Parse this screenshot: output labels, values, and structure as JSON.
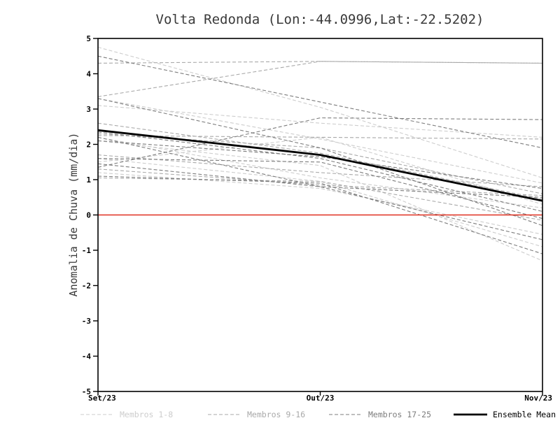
{
  "chart_data": {
    "type": "line",
    "title": "Volta Redonda (Lon:-44.0996,Lat:-22.5202)",
    "xlabel": "",
    "ylabel": "Anomalia de Chuva (mm/dia)",
    "x_categories": [
      "Set/23",
      "Out/23",
      "Nov/23"
    ],
    "ylim": [
      -5,
      5
    ],
    "ytick_step": 1,
    "grid": false,
    "legend_position": "bottom",
    "colors": {
      "members_1_8": "#cdcdcd",
      "members_9_16": "#a9a9a9",
      "members_17_25": "#7d7d7d",
      "ensemble_mean": "#000000",
      "zero_line": "#e03020",
      "frame": "#000000"
    },
    "zero_line": {
      "y": 0
    },
    "groups": [
      {
        "label": "Membros 1-8",
        "color": "#cdcdcd",
        "members": [
          [
            4.75,
            3.05,
            1.05
          ],
          [
            3.3,
            2.15,
            0.9
          ],
          [
            2.1,
            1.4,
            -1.3
          ],
          [
            1.6,
            0.95,
            -0.9
          ],
          [
            3.1,
            2.6,
            2.2
          ],
          [
            1.5,
            2.2,
            0.3
          ],
          [
            2.2,
            1.05,
            0.2
          ],
          [
            1.2,
            0.75,
            -0.55
          ]
        ]
      },
      {
        "label": "Membros 9-16",
        "color": "#a9a9a9",
        "members": [
          [
            4.3,
            4.35,
            4.3
          ],
          [
            3.35,
            4.35,
            4.3
          ],
          [
            2.3,
            1.9,
            0.6
          ],
          [
            2.6,
            1.75,
            0.45
          ],
          [
            1.7,
            1.2,
            0.8
          ],
          [
            1.3,
            0.85,
            0.55
          ],
          [
            2.25,
            2.2,
            2.15
          ],
          [
            1.05,
            0.95,
            -0.15
          ]
        ]
      },
      {
        "label": "Membros 17-25",
        "color": "#7d7d7d",
        "members": [
          [
            4.5,
            3.2,
            1.9
          ],
          [
            3.3,
            1.9,
            -0.3
          ],
          [
            2.35,
            1.6,
            0.1
          ],
          [
            1.6,
            1.5,
            -0.1
          ],
          [
            1.45,
            0.8,
            -0.7
          ],
          [
            2.1,
            1.65,
            0.75
          ],
          [
            1.35,
            2.75,
            2.7
          ],
          [
            2.2,
            0.8,
            0.5
          ],
          [
            1.1,
            0.9,
            -1.1
          ]
        ]
      }
    ],
    "ensemble_mean": {
      "label": "Ensemble Mean",
      "color": "#000000",
      "values": [
        2.4,
        1.7,
        0.4
      ]
    },
    "legend": [
      {
        "label": "Membros 1-8",
        "color": "#cdcdcd",
        "style": "dashed"
      },
      {
        "label": "Membros 9-16",
        "color": "#a9a9a9",
        "style": "dashed"
      },
      {
        "label": "Membros 17-25",
        "color": "#7d7d7d",
        "style": "dashed"
      },
      {
        "label": "Ensemble Mean",
        "color": "#000000",
        "style": "solid"
      }
    ],
    "ytick_labels": [
      "-5",
      "-4",
      "-3",
      "-2",
      "-1",
      "0",
      "1",
      "2",
      "3",
      "4",
      "5"
    ]
  }
}
